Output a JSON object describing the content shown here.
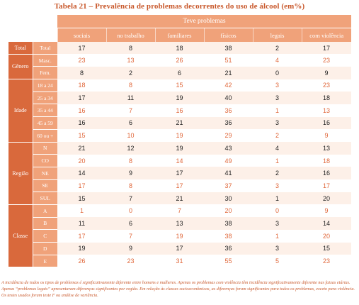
{
  "title": "Tabela 21 – Prevalência de problemas decorrentes do uso de álcool (em%)",
  "header_group": "Teve problemas",
  "columns": [
    "sociais",
    "no trabalho",
    "familiares",
    "físicos",
    "legais",
    "com violência"
  ],
  "groups": [
    {
      "label": "Total",
      "rows": [
        {
          "label": "Total",
          "values": [
            "17",
            "8",
            "18",
            "38",
            "2",
            "17"
          ],
          "highlight": false
        }
      ]
    },
    {
      "label": "Gênero",
      "rows": [
        {
          "label": "Masc.",
          "values": [
            "23",
            "13",
            "26",
            "51",
            "4",
            "23"
          ],
          "highlight": true
        },
        {
          "label": "Fem.",
          "values": [
            "8",
            "2",
            "6",
            "21",
            "0",
            "9"
          ],
          "highlight": false
        }
      ]
    },
    {
      "label": "Idade",
      "rows": [
        {
          "label": "18 a 24",
          "values": [
            "18",
            "8",
            "15",
            "42",
            "3",
            "23"
          ],
          "highlight": true
        },
        {
          "label": "25 a 34",
          "values": [
            "17",
            "11",
            "19",
            "40",
            "3",
            "18"
          ],
          "highlight": false
        },
        {
          "label": "35 a 44",
          "values": [
            "16",
            "7",
            "16",
            "36",
            "1",
            "13"
          ],
          "highlight": true
        },
        {
          "label": "45 a 59",
          "values": [
            "16",
            "6",
            "21",
            "36",
            "3",
            "16"
          ],
          "highlight": false
        },
        {
          "label": "60 ou +",
          "values": [
            "15",
            "10",
            "19",
            "29",
            "2",
            "9"
          ],
          "highlight": true
        }
      ]
    },
    {
      "label": "Região",
      "rows": [
        {
          "label": "N",
          "values": [
            "21",
            "12",
            "19",
            "43",
            "4",
            "13"
          ],
          "highlight": false
        },
        {
          "label": "CO",
          "values": [
            "20",
            "8",
            "14",
            "49",
            "1",
            "18"
          ],
          "highlight": true
        },
        {
          "label": "NE",
          "values": [
            "14",
            "9",
            "17",
            "41",
            "2",
            "16"
          ],
          "highlight": false
        },
        {
          "label": "SE",
          "values": [
            "17",
            "8",
            "17",
            "37",
            "3",
            "17"
          ],
          "highlight": true
        },
        {
          "label": "SUL",
          "values": [
            "15",
            "7",
            "21",
            "30",
            "1",
            "20"
          ],
          "highlight": false
        }
      ]
    },
    {
      "label": "Classe",
      "rows": [
        {
          "label": "A",
          "values": [
            "1",
            "0",
            "7",
            "20",
            "0",
            "9"
          ],
          "highlight": true
        },
        {
          "label": "B",
          "values": [
            "11",
            "6",
            "13",
            "38",
            "3",
            "14"
          ],
          "highlight": false
        },
        {
          "label": "C",
          "values": [
            "17",
            "7",
            "19",
            "38",
            "1",
            "20"
          ],
          "highlight": true
        },
        {
          "label": "D",
          "values": [
            "19",
            "9",
            "17",
            "36",
            "3",
            "15"
          ],
          "highlight": false
        },
        {
          "label": "E",
          "values": [
            "26",
            "23",
            "31",
            "55",
            "5",
            "23"
          ],
          "highlight": true
        }
      ]
    }
  ],
  "footnote": "A incidência de todos os tipos de problemas é significativamente diferente entre homens e mulheres. Apenas os problemas com violência têm incidência significativamente diferente nas faixas etárias. Apenas “problemas legais” apresentaram diferenças significantes por região. Em relação às classes socioeconômicas, as diferenças foram significantes para todos os problemas, exceto para violência. Os testes usados foram teste F ou análise de variância."
}
